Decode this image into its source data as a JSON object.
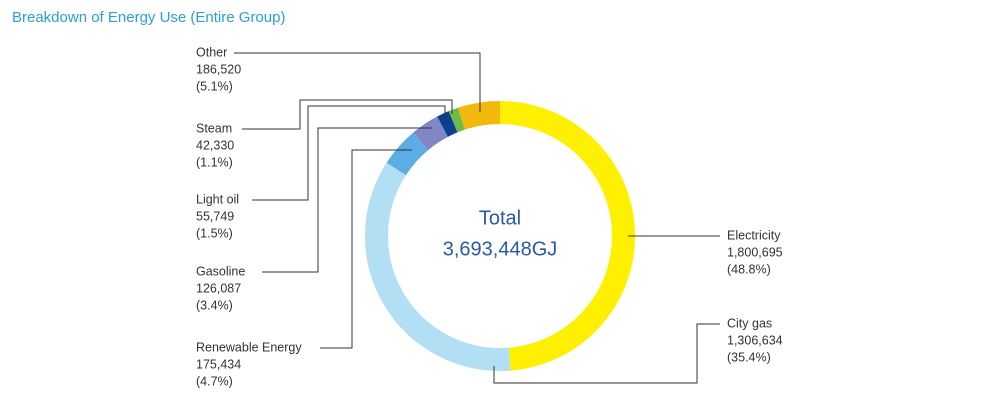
{
  "chart_data": {
    "type": "donut",
    "title": "Breakdown of Energy Use (Entire Group)",
    "center_title": "Total",
    "total": 3693448,
    "total_label": "3,693,448GJ",
    "categories": [
      "Electricity",
      "City gas",
      "Renewable Energy",
      "Gasoline",
      "Light oil",
      "Steam",
      "Other"
    ],
    "values": [
      1800695,
      1306634,
      175434,
      126087,
      55749,
      42330,
      186520
    ],
    "value_labels": [
      "1,800,695",
      "1,306,634",
      "175,434",
      "126,087",
      "55,749",
      "42,330",
      "186,520"
    ],
    "percents": [
      48.8,
      35.4,
      4.7,
      3.4,
      1.5,
      1.1,
      5.1
    ],
    "percent_labels": [
      "(48.8%)",
      "(35.4%)",
      "(4.7%)",
      "(3.4%)",
      "(1.5%)",
      "(1.1%)",
      "(5.1%)"
    ],
    "colors": [
      "#fff000",
      "#b3dff5",
      "#5aaee3",
      "#8286c4",
      "#0d3f8f",
      "#6cbd45",
      "#f3b80e"
    ]
  }
}
